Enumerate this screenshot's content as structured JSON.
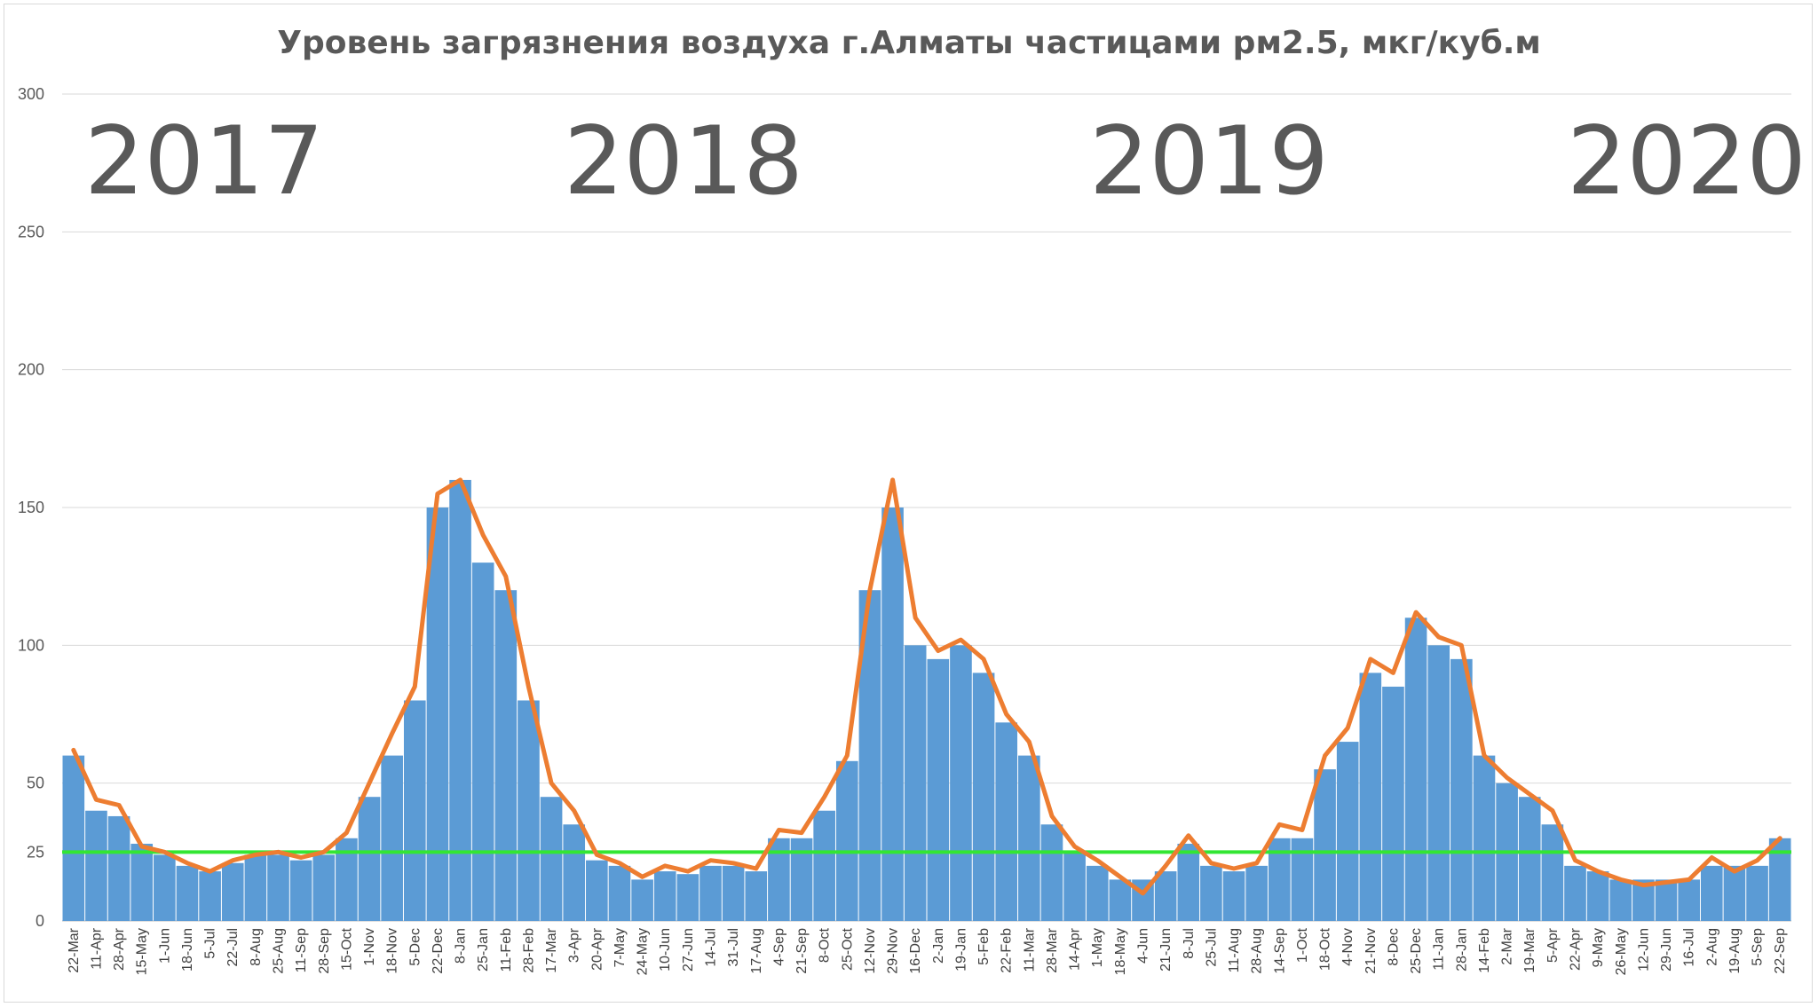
{
  "chart_data": {
    "type": "bar",
    "title": "Уровень загрязнения воздуха г.Алматы частицами рм2.5, мкг/куб.м",
    "xlabel": "",
    "ylabel": "",
    "ylim": [
      0,
      300
    ],
    "yticks": [
      0,
      50,
      100,
      150,
      200,
      250,
      300
    ],
    "grid": true,
    "legend": "none",
    "colors": {
      "bars": "#5b9bd5",
      "moving_average": "#ed7d31",
      "threshold": "#33e633",
      "grid": "#d9d9d9",
      "text": "#595959"
    },
    "year_labels": [
      "2017",
      "2018",
      "2019",
      "2020"
    ],
    "x_tick_labels": [
      "22-Mar",
      "11-Apr",
      "28-Apr",
      "15-May",
      "1-Jun",
      "18-Jun",
      "5-Jul",
      "22-Jul",
      "8-Aug",
      "25-Aug",
      "11-Sep",
      "28-Sep",
      "15-Oct",
      "1-Nov",
      "18-Nov",
      "5-Dec",
      "22-Dec",
      "8-Jan",
      "25-Jan",
      "11-Feb",
      "28-Feb",
      "17-Mar",
      "3-Apr",
      "20-Apr",
      "7-May",
      "24-May",
      "10-Jun",
      "27-Jun",
      "14-Jul",
      "31-Jul",
      "17-Aug",
      "4-Sep",
      "21-Sep",
      "8-Oct",
      "25-Oct",
      "12-Nov",
      "29-Nov",
      "16-Dec",
      "2-Jan",
      "19-Jan",
      "5-Feb",
      "22-Feb",
      "11-Mar",
      "28-Mar",
      "14-Apr",
      "1-May",
      "18-May",
      "4-Jun",
      "21-Jun",
      "8-Jul",
      "25-Jul",
      "11-Aug",
      "28-Aug",
      "14-Sep",
      "1-Oct",
      "18-Oct",
      "4-Nov",
      "21-Nov",
      "8-Dec",
      "25-Dec",
      "11-Jan",
      "28-Jan",
      "14-Feb",
      "2-Mar",
      "19-Mar",
      "5-Apr",
      "22-Apr",
      "9-May",
      "26-May",
      "12-Jun",
      "29-Jun",
      "16-Jul",
      "2-Aug",
      "19-Aug",
      "5-Sep",
      "22-Sep"
    ],
    "threshold": {
      "label": "25",
      "value": 25
    },
    "series": [
      {
        "type": "bar",
        "values_sampled_every_17_days": [
          60,
          40,
          38,
          28,
          24,
          20,
          18,
          21,
          24,
          24,
          22,
          24,
          30,
          45,
          60,
          80,
          150,
          160,
          130,
          120,
          80,
          45,
          35,
          22,
          20,
          15,
          18,
          17,
          20,
          20,
          18,
          30,
          30,
          40,
          58,
          120,
          150,
          100,
          95,
          100,
          90,
          72,
          60,
          35,
          25,
          20,
          15,
          15,
          18,
          28,
          20,
          18,
          20,
          30,
          30,
          55,
          65,
          90,
          85,
          110,
          100,
          95,
          60,
          50,
          45,
          35,
          20,
          18,
          15,
          15,
          15,
          15,
          20,
          20,
          20,
          30
        ]
      },
      {
        "type": "line",
        "values_sampled_every_17_days": [
          62,
          44,
          42,
          27,
          25,
          21,
          18,
          22,
          24,
          25,
          23,
          25,
          32,
          50,
          68,
          85,
          155,
          160,
          140,
          125,
          85,
          50,
          40,
          24,
          21,
          16,
          20,
          18,
          22,
          21,
          19,
          33,
          32,
          45,
          60,
          120,
          160,
          110,
          98,
          102,
          95,
          75,
          65,
          38,
          27,
          22,
          16,
          10,
          20,
          31,
          21,
          19,
          21,
          35,
          33,
          60,
          70,
          95,
          90,
          112,
          103,
          100,
          60,
          52,
          46,
          40,
          22,
          18,
          15,
          13,
          14,
          15,
          23,
          18,
          22,
          30
        ]
      }
    ]
  }
}
